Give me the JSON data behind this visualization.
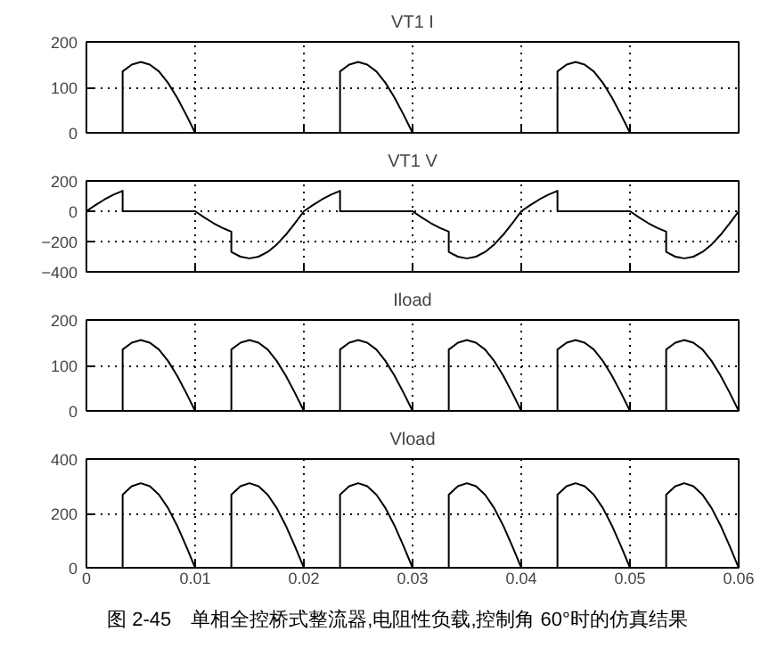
{
  "chart_data": [
    {
      "type": "line",
      "title": "VT1 I",
      "xlim": [
        0,
        0.06
      ],
      "xticks": [
        0,
        0.01,
        0.02,
        0.03,
        0.04,
        0.05,
        0.06
      ],
      "ylim": [
        0,
        200
      ],
      "yticks": [
        0,
        100,
        200
      ],
      "grid": true,
      "tick_labels": "y",
      "series": [
        {
          "color": "#000000",
          "x": [
            0,
            0.00333,
            0.00333,
            0.00417,
            0.005,
            0.00583,
            0.00667,
            0.0075,
            0.00833,
            0.00917,
            0.01,
            0.02,
            0.02333,
            0.02333,
            0.02417,
            0.025,
            0.02583,
            0.02667,
            0.0275,
            0.02833,
            0.02917,
            0.03,
            0.04,
            0.04333,
            0.04333,
            0.04417,
            0.045,
            0.04583,
            0.04667,
            0.0475,
            0.04833,
            0.04917,
            0.05,
            0.06
          ],
          "values": [
            0,
            0,
            135,
            150,
            156,
            150,
            135,
            110,
            78,
            40,
            0,
            0,
            0,
            135,
            150,
            156,
            150,
            135,
            110,
            78,
            40,
            0,
            0,
            0,
            135,
            150,
            156,
            150,
            135,
            110,
            78,
            40,
            0,
            0
          ]
        }
      ]
    },
    {
      "type": "line",
      "title": "VT1 V",
      "xlim": [
        0,
        0.06
      ],
      "xticks": [
        0,
        0.01,
        0.02,
        0.03,
        0.04,
        0.05,
        0.06
      ],
      "ylim": [
        -400,
        200
      ],
      "yticks": [
        -400,
        -200,
        0,
        200
      ],
      "grid": true,
      "tick_labels": "y",
      "series": [
        {
          "color": "#000000",
          "x": [
            0,
            0.00083,
            0.00167,
            0.0025,
            0.00333,
            0.00333,
            0.01,
            0.01083,
            0.01167,
            0.0125,
            0.01333,
            0.01333,
            0.01417,
            0.015,
            0.01583,
            0.01667,
            0.0175,
            0.01833,
            0.01917,
            0.02,
            0.02083,
            0.02167,
            0.0225,
            0.02333,
            0.02333,
            0.03,
            0.03083,
            0.03167,
            0.0325,
            0.03333,
            0.03333,
            0.03417,
            0.035,
            0.03583,
            0.03667,
            0.0375,
            0.03833,
            0.03917,
            0.04,
            0.04083,
            0.04167,
            0.0425,
            0.04333,
            0.04333,
            0.05,
            0.05083,
            0.05167,
            0.0525,
            0.05333,
            0.05333,
            0.05417,
            0.055,
            0.05583,
            0.05667,
            0.0575,
            0.05833,
            0.05917,
            0.06
          ],
          "values": [
            0,
            40,
            78,
            110,
            135,
            0,
            0,
            -40,
            -78,
            -110,
            -135,
            -269,
            -300,
            -311,
            -300,
            -269,
            -220,
            -156,
            -80,
            0,
            40,
            78,
            110,
            135,
            0,
            0,
            -40,
            -78,
            -110,
            -135,
            -269,
            -300,
            -311,
            -300,
            -269,
            -220,
            -156,
            -80,
            0,
            40,
            78,
            110,
            135,
            0,
            0,
            -40,
            -78,
            -110,
            -135,
            -269,
            -300,
            -311,
            -300,
            -269,
            -220,
            -156,
            -80,
            0
          ]
        }
      ]
    },
    {
      "type": "line",
      "title": "Iload",
      "xlim": [
        0,
        0.06
      ],
      "xticks": [
        0,
        0.01,
        0.02,
        0.03,
        0.04,
        0.05,
        0.06
      ],
      "ylim": [
        0,
        200
      ],
      "yticks": [
        0,
        100,
        200
      ],
      "grid": true,
      "tick_labels": "y",
      "series": [
        {
          "color": "#000000",
          "x": [
            0,
            0.00333,
            0.00333,
            0.00417,
            0.005,
            0.00583,
            0.00667,
            0.0075,
            0.00833,
            0.00917,
            0.01,
            0.01333,
            0.01333,
            0.01417,
            0.015,
            0.01583,
            0.01667,
            0.0175,
            0.01833,
            0.01917,
            0.02,
            0.02333,
            0.02333,
            0.02417,
            0.025,
            0.02583,
            0.02667,
            0.0275,
            0.02833,
            0.02917,
            0.03,
            0.03333,
            0.03333,
            0.03417,
            0.035,
            0.03583,
            0.03667,
            0.0375,
            0.03833,
            0.03917,
            0.04,
            0.04333,
            0.04333,
            0.04417,
            0.045,
            0.04583,
            0.04667,
            0.0475,
            0.04833,
            0.04917,
            0.05,
            0.05333,
            0.05333,
            0.05417,
            0.055,
            0.05583,
            0.05667,
            0.0575,
            0.05833,
            0.05917,
            0.06
          ],
          "values": [
            0,
            0,
            135,
            150,
            156,
            150,
            135,
            110,
            78,
            40,
            0,
            0,
            135,
            150,
            156,
            150,
            135,
            110,
            78,
            40,
            0,
            0,
            135,
            150,
            156,
            150,
            135,
            110,
            78,
            40,
            0,
            0,
            135,
            150,
            156,
            150,
            135,
            110,
            78,
            40,
            0,
            0,
            135,
            150,
            156,
            150,
            135,
            110,
            78,
            40,
            0,
            0,
            135,
            150,
            156,
            150,
            135,
            110,
            78,
            40,
            0
          ]
        }
      ]
    },
    {
      "type": "line",
      "title": "Vload",
      "xlim": [
        0,
        0.06
      ],
      "xticks": [
        0,
        0.01,
        0.02,
        0.03,
        0.04,
        0.05,
        0.06
      ],
      "ylim": [
        0,
        400
      ],
      "yticks": [
        0,
        200,
        400
      ],
      "grid": true,
      "annotations": [
        "图 2-45　单相全控桥式整流器,电阻性负载,控制角 60°时的仿真结果"
      ],
      "series": [
        {
          "color": "#000000",
          "x": [
            0,
            0.00333,
            0.00333,
            0.00417,
            0.005,
            0.00583,
            0.00667,
            0.0075,
            0.00833,
            0.00917,
            0.01,
            0.01333,
            0.01333,
            0.01417,
            0.015,
            0.01583,
            0.01667,
            0.0175,
            0.01833,
            0.01917,
            0.02,
            0.02333,
            0.02333,
            0.02417,
            0.025,
            0.02583,
            0.02667,
            0.0275,
            0.02833,
            0.02917,
            0.03,
            0.03333,
            0.03333,
            0.03417,
            0.035,
            0.03583,
            0.03667,
            0.0375,
            0.03833,
            0.03917,
            0.04,
            0.04333,
            0.04333,
            0.04417,
            0.045,
            0.04583,
            0.04667,
            0.0475,
            0.04833,
            0.04917,
            0.05,
            0.05333,
            0.05333,
            0.05417,
            0.055,
            0.05583,
            0.05667,
            0.0575,
            0.05833,
            0.05917,
            0.06
          ],
          "values": [
            0,
            0,
            269,
            300,
            311,
            300,
            269,
            220,
            156,
            80,
            0,
            0,
            269,
            300,
            311,
            300,
            269,
            220,
            156,
            80,
            0,
            0,
            269,
            300,
            311,
            300,
            269,
            220,
            156,
            80,
            0,
            0,
            269,
            300,
            311,
            300,
            269,
            220,
            156,
            80,
            0,
            0,
            269,
            300,
            311,
            300,
            269,
            220,
            156,
            80,
            0,
            0,
            269,
            300,
            311,
            300,
            269,
            220,
            156,
            80,
            0
          ]
        }
      ]
    }
  ]
}
